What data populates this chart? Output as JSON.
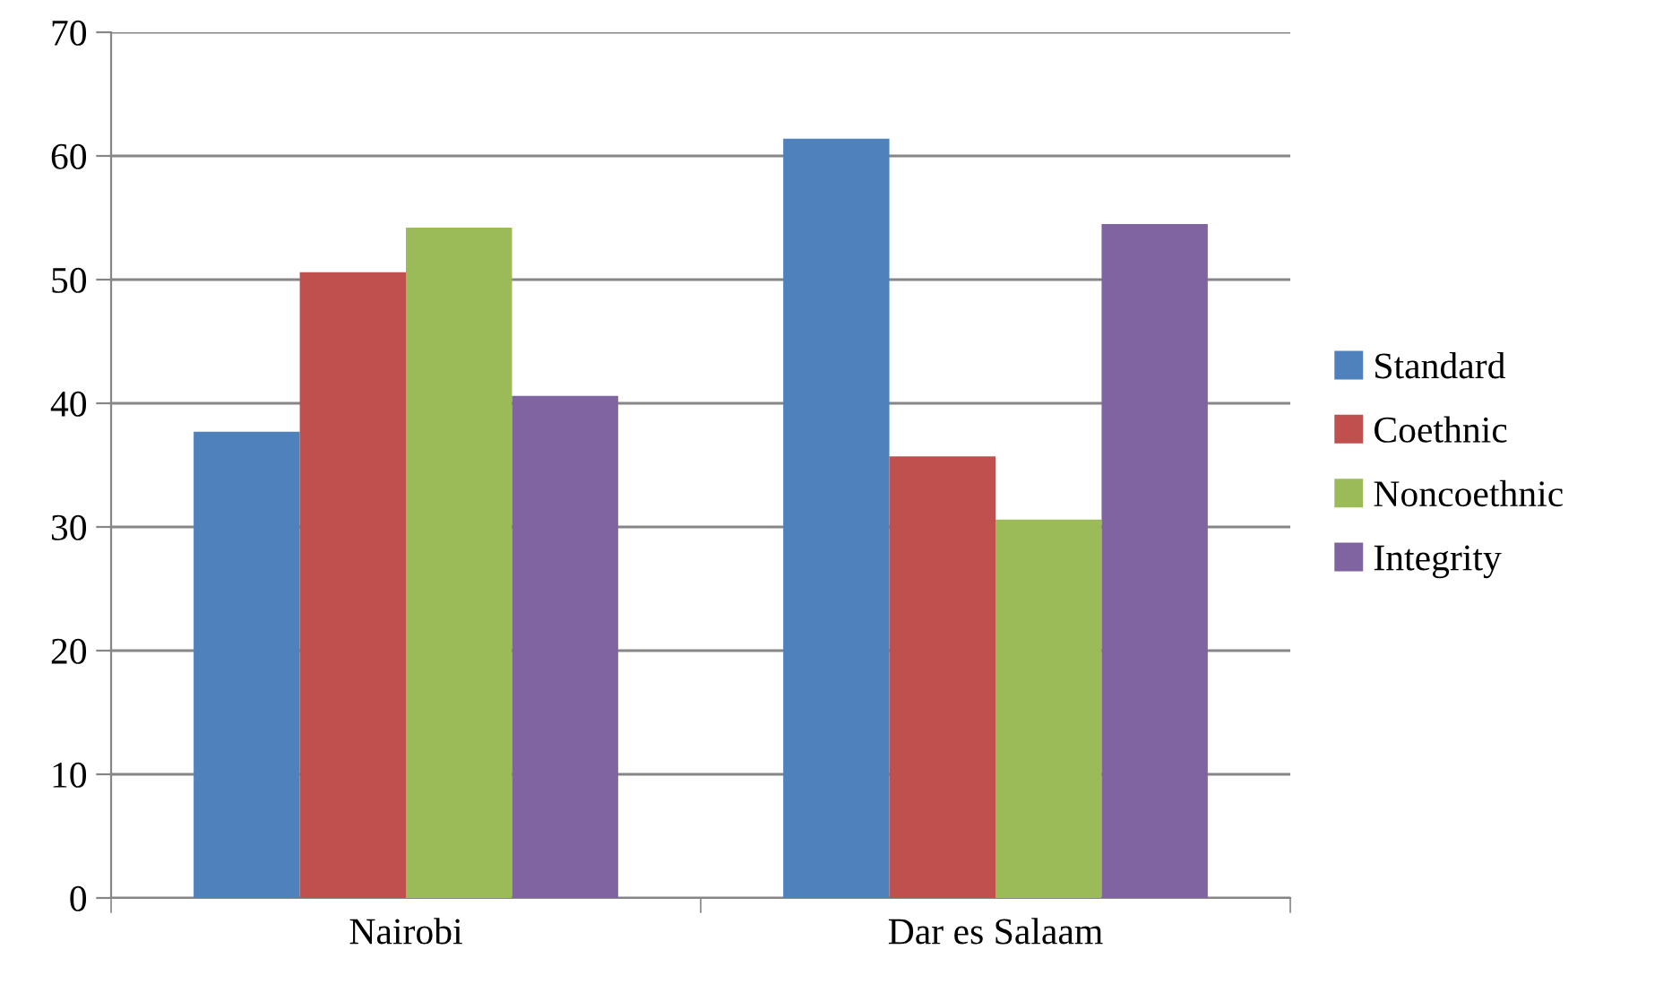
{
  "chart_data": {
    "type": "bar",
    "categories": [
      "Nairobi",
      "Dar es Salaam"
    ],
    "series": [
      {
        "name": "Standard",
        "color": "#4f81bd",
        "values": [
          37.7,
          61.4
        ]
      },
      {
        "name": "Coethnic",
        "color": "#c0504d",
        "values": [
          50.6,
          35.7
        ]
      },
      {
        "name": "Noncoethnic",
        "color": "#9bbb59",
        "values": [
          54.2,
          30.6
        ]
      },
      {
        "name": "Integrity",
        "color": "#8064a2",
        "values": [
          40.6,
          54.5
        ]
      }
    ],
    "ylim": [
      0,
      70
    ],
    "yticks": [
      0,
      10,
      20,
      30,
      40,
      50,
      60,
      70
    ],
    "grid": "y",
    "legend": "right"
  }
}
